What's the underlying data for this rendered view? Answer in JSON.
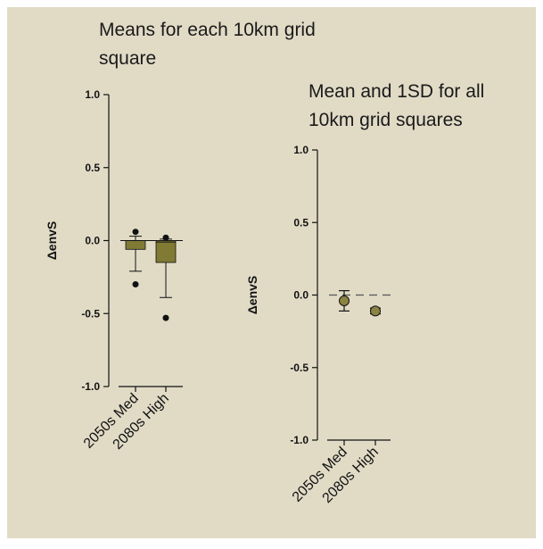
{
  "colors": {
    "background": "#e1dbc6",
    "box_fill": "#817a34",
    "marker_fill": "#8a8342",
    "ink": "#111111"
  },
  "chart_data": [
    {
      "type": "box",
      "title": "Means for each 10km grid square",
      "ylabel": "ΔenvS",
      "ylim": [
        -1.0,
        1.0
      ],
      "yticks": [
        "1.0",
        "0.5",
        "0.0",
        "-0.5",
        "-1.0"
      ],
      "categories": [
        "2050s Med",
        "2080s High"
      ],
      "boxes": [
        {
          "category": "2050s Med",
          "whisker_low": -0.21,
          "q1": -0.06,
          "median": 0.0,
          "q3": 0.0,
          "whisker_high": 0.03,
          "outliers": [
            0.06,
            -0.3
          ]
        },
        {
          "category": "2080s High",
          "whisker_low": -0.39,
          "q1": -0.15,
          "median": -0.01,
          "q3": 0.0,
          "whisker_high": 0.01,
          "outliers": [
            0.02,
            -0.53
          ]
        }
      ],
      "reference_line": 0.0
    },
    {
      "type": "scatter",
      "title": "Mean and 1SD for all 10km grid squares",
      "ylabel": "ΔenvS",
      "ylim": [
        -1.0,
        1.0
      ],
      "yticks": [
        "1.0",
        "0.5",
        "0.0",
        "-0.5",
        "-1.0"
      ],
      "categories": [
        "2050s Med",
        "2080s High"
      ],
      "points": [
        {
          "category": "2050s Med",
          "mean": -0.04,
          "sd": 0.07
        },
        {
          "category": "2080s High",
          "mean": -0.11,
          "sd": 0.02
        }
      ],
      "reference_line": 0.0,
      "reference_line_style": "dashed"
    }
  ]
}
